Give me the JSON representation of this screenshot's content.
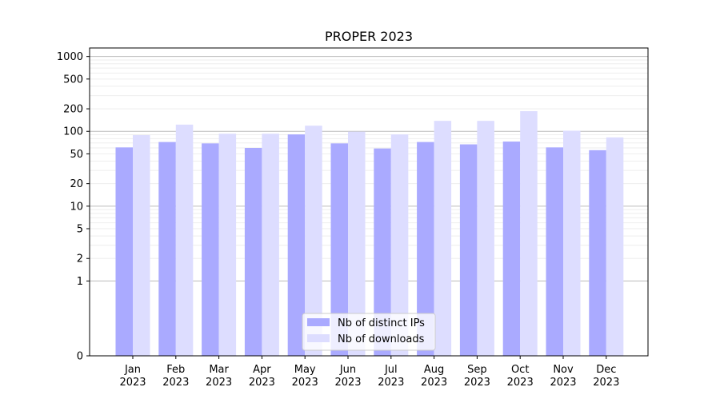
{
  "chart_data": {
    "type": "bar",
    "title": "PROPER 2023",
    "xlabel": "",
    "ylabel": "",
    "categories": [
      [
        "Jan",
        "2023"
      ],
      [
        "Feb",
        "2023"
      ],
      [
        "Mar",
        "2023"
      ],
      [
        "Apr",
        "2023"
      ],
      [
        "May",
        "2023"
      ],
      [
        "Jun",
        "2023"
      ],
      [
        "Jul",
        "2023"
      ],
      [
        "Aug",
        "2023"
      ],
      [
        "Sep",
        "2023"
      ],
      [
        "Oct",
        "2023"
      ],
      [
        "Nov",
        "2023"
      ],
      [
        "Dec",
        "2023"
      ]
    ],
    "y_scale": "symlog",
    "ylim": [
      0,
      1300
    ],
    "yticks": [
      0,
      1,
      2,
      5,
      10,
      20,
      50,
      100,
      200,
      500,
      1000
    ],
    "grid": true,
    "legend_position": "bottom-center",
    "series": [
      {
        "name": "Nb of distinct IPs",
        "color": "#aaaaff",
        "values": [
          61,
          72,
          69,
          60,
          91,
          69,
          59,
          72,
          67,
          73,
          61,
          56
        ]
      },
      {
        "name": "Nb of downloads",
        "color": "#ddddff",
        "values": [
          89,
          123,
          93,
          93,
          119,
          99,
          91,
          138,
          138,
          186,
          102,
          83
        ]
      }
    ]
  }
}
